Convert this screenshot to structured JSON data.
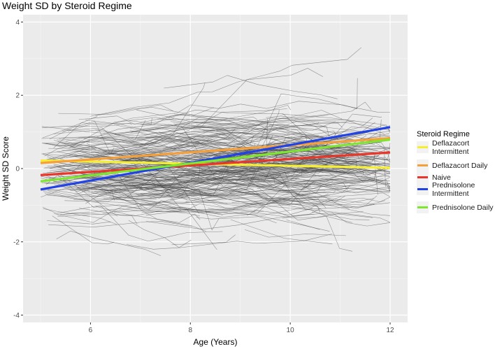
{
  "chart_data": {
    "type": "line",
    "title": "Weight SD by Steroid Regime",
    "xlabel": "Age (Years)",
    "ylabel": "Weight SD Score",
    "xlim": [
      4.65,
      12.35
    ],
    "ylim": [
      -4.2,
      4.2
    ],
    "x_ticks": [
      6,
      8,
      10,
      12
    ],
    "y_ticks": [
      -4,
      -2,
      0,
      2,
      4
    ],
    "grid": true,
    "legend": {
      "title": "Steroid Regime",
      "placement": "right",
      "entries": [
        {
          "label": [
            "Deflazacort",
            "Intermittent"
          ],
          "color": "#f5ee33"
        },
        {
          "label": [
            "Deflazacort Daily"
          ],
          "color": "#f5a03a"
        },
        {
          "label": [
            "Naive"
          ],
          "color": "#e8372a"
        },
        {
          "label": [
            "Prednisolone",
            "Intermittent"
          ],
          "color": "#2143e6"
        },
        {
          "label": [
            "Prednisolone Daily"
          ],
          "color": "#7ee62e"
        }
      ]
    },
    "series": [
      {
        "name": "Deflazacort Intermittent",
        "color": "#f5ee33",
        "x": [
          5,
          12
        ],
        "y": [
          0.22,
          0.02
        ]
      },
      {
        "name": "Deflazacort Daily",
        "color": "#f5a03a",
        "x": [
          5,
          12
        ],
        "y": [
          0.15,
          0.83
        ]
      },
      {
        "name": "Naive",
        "color": "#e8372a",
        "x": [
          5,
          12
        ],
        "y": [
          -0.18,
          0.44
        ]
      },
      {
        "name": "Prednisolone Intermittent",
        "color": "#2143e6",
        "x": [
          5,
          12
        ],
        "y": [
          -0.57,
          1.13
        ]
      },
      {
        "name": "Prednisolone Daily",
        "color": "#7ee62e",
        "x": [
          5,
          12
        ],
        "y": [
          -0.35,
          0.79
        ]
      }
    ]
  }
}
